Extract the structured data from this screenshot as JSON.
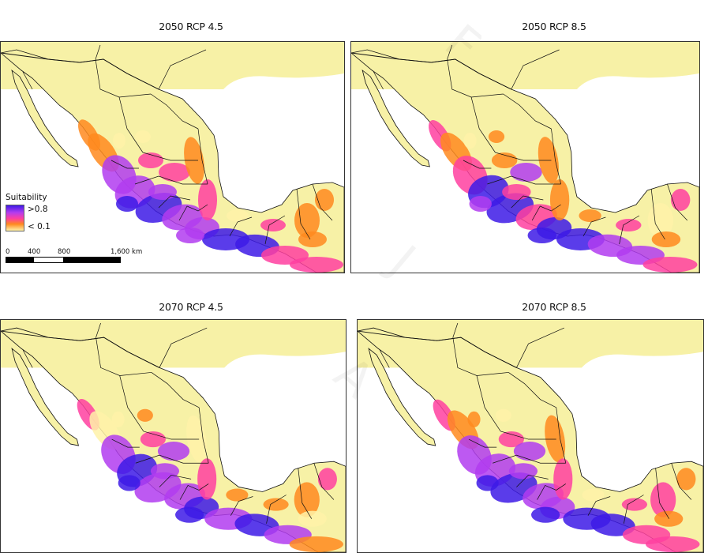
{
  "panels": [
    {
      "title": "2050 RCP 4.5",
      "scenario": "2050 RCP 4.5"
    },
    {
      "title": "2050 RCP 8.5",
      "scenario": "2050 RCP 8.5"
    },
    {
      "title": "2070 RCP 4.5",
      "scenario": "2070 RCP 4.5"
    },
    {
      "title": "2070 RCP 8.5",
      "scenario": "2070 RCP 8.5"
    }
  ],
  "legend": {
    "title": "Suitability",
    "high_label": ">0.8",
    "low_label": "< 0.1",
    "colors": [
      "#3d1ae6",
      "#b23cf0",
      "#ff3fa0",
      "#ff8a1e",
      "#fff2a8"
    ]
  },
  "scale_bar": {
    "ticks": [
      "0",
      "400",
      "800",
      "1,600 km"
    ]
  },
  "colors": {
    "land_background": "#f7f1a6",
    "water": "#ffffff",
    "border": "#111111"
  }
}
